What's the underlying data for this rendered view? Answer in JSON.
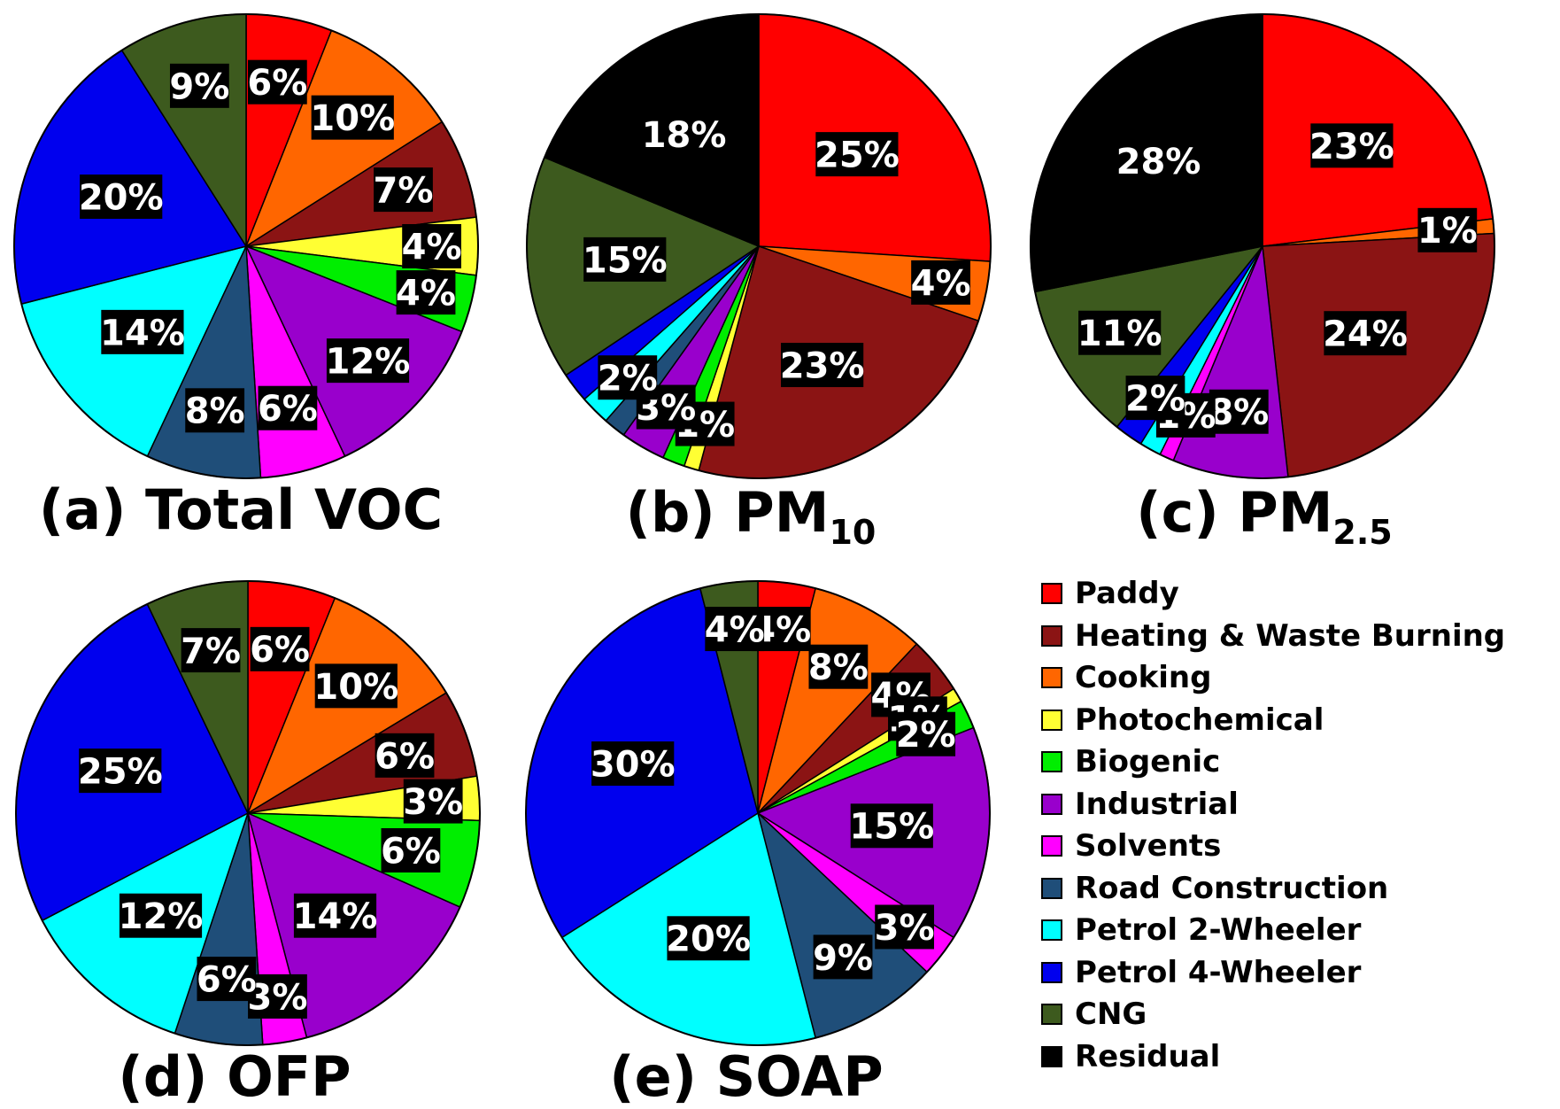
{
  "legend": [
    {
      "name": "Paddy",
      "color": "#ff0000"
    },
    {
      "name": "Heating & Waste Burning",
      "color": "#8b1414"
    },
    {
      "name": "Cooking",
      "color": "#ff6600"
    },
    {
      "name": "Photochemical",
      "color": "#ffff33"
    },
    {
      "name": "Biogenic",
      "color": "#00ee00"
    },
    {
      "name": "Industrial",
      "color": "#9900cc"
    },
    {
      "name": "Solvents",
      "color": "#ff00ff"
    },
    {
      "name": "Road Construction",
      "color": "#1f4e79"
    },
    {
      "name": "Petrol 2-Wheeler",
      "color": "#00ffff"
    },
    {
      "name": "Petrol 4-Wheeler",
      "color": "#0000ee"
    },
    {
      "name": "CNG",
      "color": "#3d5a1e"
    },
    {
      "name": "Residual",
      "color": "#000000"
    }
  ],
  "chart_data": [
    {
      "type": "pie",
      "title": "(a) Total VOC",
      "slices": [
        {
          "name": "Paddy",
          "value": 6,
          "label": "6%"
        },
        {
          "name": "Cooking",
          "value": 10,
          "label": "10%"
        },
        {
          "name": "Heating & Waste Burning",
          "value": 7,
          "label": "7%"
        },
        {
          "name": "Photochemical",
          "value": 4,
          "label": "4%"
        },
        {
          "name": "Biogenic",
          "value": 4,
          "label": "4%"
        },
        {
          "name": "Industrial",
          "value": 12,
          "label": "12%"
        },
        {
          "name": "Solvents",
          "value": 6,
          "label": "6%"
        },
        {
          "name": "Road Construction",
          "value": 8,
          "label": "8%"
        },
        {
          "name": "Petrol 2-Wheeler",
          "value": 14,
          "label": "14%"
        },
        {
          "name": "Petrol 4-Wheeler",
          "value": 20,
          "label": "20%"
        },
        {
          "name": "CNG",
          "value": 9,
          "label": "9%"
        }
      ]
    },
    {
      "type": "pie",
      "title": "(b) PM",
      "title_sub": "10",
      "slices": [
        {
          "name": "Paddy",
          "value": 25,
          "label": "25%"
        },
        {
          "name": "Cooking",
          "value": 4,
          "label": "4%"
        },
        {
          "name": "Heating & Waste Burning",
          "value": 23,
          "label": "23%"
        },
        {
          "name": "Photochemical",
          "value": 1,
          "label": "1%"
        },
        {
          "name": "Biogenic",
          "value": 1.5,
          "label": ""
        },
        {
          "name": "Industrial",
          "value": 3,
          "label": "3%"
        },
        {
          "name": "Road Construction",
          "value": 1.5,
          "label": ""
        },
        {
          "name": "Petrol 2-Wheeler",
          "value": 2,
          "label": "2%"
        },
        {
          "name": "Petrol 4-Wheeler",
          "value": 2,
          "label": ""
        },
        {
          "name": "CNG",
          "value": 15,
          "label": "15%"
        },
        {
          "name": "Residual",
          "value": 18,
          "label": "18%"
        }
      ]
    },
    {
      "type": "pie",
      "title": "(c) PM",
      "title_sub": "2.5",
      "slices": [
        {
          "name": "Paddy",
          "value": 23,
          "label": "23%"
        },
        {
          "name": "Cooking",
          "value": 1,
          "label": "1%"
        },
        {
          "name": "Heating & Waste Burning",
          "value": 24,
          "label": "24%"
        },
        {
          "name": "Industrial",
          "value": 8,
          "label": "8%"
        },
        {
          "name": "Solvents",
          "value": 1,
          "label": "1%"
        },
        {
          "name": "Petrol 2-Wheeler",
          "value": 1.5,
          "label": ""
        },
        {
          "name": "Petrol 4-Wheeler",
          "value": 2,
          "label": "2%"
        },
        {
          "name": "CNG",
          "value": 11,
          "label": "11%"
        },
        {
          "name": "Residual",
          "value": 28,
          "label": "28%"
        }
      ]
    },
    {
      "type": "pie",
      "title": "(d) OFP",
      "slices": [
        {
          "name": "Paddy",
          "value": 6,
          "label": "6%"
        },
        {
          "name": "Cooking",
          "value": 10,
          "label": "10%"
        },
        {
          "name": "Heating & Waste Burning",
          "value": 6,
          "label": "6%"
        },
        {
          "name": "Photochemical",
          "value": 3,
          "label": "3%"
        },
        {
          "name": "Biogenic",
          "value": 6,
          "label": "6%"
        },
        {
          "name": "Industrial",
          "value": 14,
          "label": "14%"
        },
        {
          "name": "Solvents",
          "value": 3,
          "label": "3%"
        },
        {
          "name": "Road Construction",
          "value": 6,
          "label": "6%"
        },
        {
          "name": "Petrol 2-Wheeler",
          "value": 12,
          "label": "12%"
        },
        {
          "name": "Petrol 4-Wheeler",
          "value": 25,
          "label": "25%"
        },
        {
          "name": "CNG",
          "value": 7,
          "label": "7%"
        }
      ]
    },
    {
      "type": "pie",
      "title": "(e) SOAP",
      "slices": [
        {
          "name": "Paddy",
          "value": 4,
          "label": "4%"
        },
        {
          "name": "Cooking",
          "value": 8,
          "label": "8%"
        },
        {
          "name": "Heating & Waste Burning",
          "value": 4,
          "label": "4%"
        },
        {
          "name": "Photochemical",
          "value": 1,
          "label": "1%"
        },
        {
          "name": "Biogenic",
          "value": 2,
          "label": "2%"
        },
        {
          "name": "Industrial",
          "value": 15,
          "label": "15%"
        },
        {
          "name": "Solvents",
          "value": 3,
          "label": "3%"
        },
        {
          "name": "Road Construction",
          "value": 9,
          "label": "9%"
        },
        {
          "name": "Petrol 2-Wheeler",
          "value": 20,
          "label": "20%"
        },
        {
          "name": "Petrol 4-Wheeler",
          "value": 30,
          "label": "30%"
        },
        {
          "name": "CNG",
          "value": 4,
          "label": "4%"
        }
      ]
    }
  ]
}
